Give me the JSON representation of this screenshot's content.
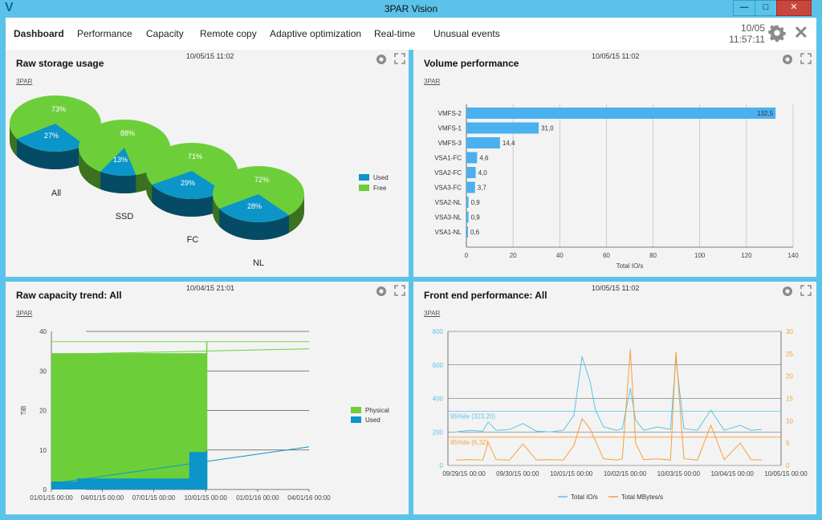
{
  "window": {
    "title": "3PAR Vision",
    "logo": "V",
    "minimize": "—",
    "maximize": "□",
    "close": "✕"
  },
  "menu": {
    "items": [
      "Dashboard",
      "Performance",
      "Capacity",
      "Remote copy",
      "Adaptive optimization",
      "Real-time",
      "Unusual events"
    ],
    "active": "Dashboard",
    "date": "10/05",
    "time": "11:57:11"
  },
  "panels": {
    "raw_storage": {
      "title": "Raw storage usage",
      "date": "10/05/15 11:02",
      "source": "3PAR"
    },
    "volume_perf": {
      "title": "Volume performance",
      "date": "10/05/15 11:02",
      "source": "3PAR"
    },
    "capacity_trend": {
      "title": "Raw capacity trend: All",
      "date": "10/04/15 21:01",
      "source": "3PAR"
    },
    "frontend_perf": {
      "title": "Front end performance: All",
      "date": "10/05/15 11:02",
      "source": "3PAR"
    }
  },
  "colors": {
    "used": "#0b95c9",
    "free": "#6ccf3a",
    "bar": "#4ab0ef",
    "iops": "#5bc3ea",
    "mbytes": "#f5a03c"
  },
  "chart_data": [
    {
      "type": "pie",
      "title": "Raw storage usage",
      "legend": [
        "Used",
        "Free"
      ],
      "legend_position": "right",
      "pies": [
        {
          "name": "All",
          "used": 27,
          "free": 73
        },
        {
          "name": "SSD",
          "used": 13,
          "free": 88
        },
        {
          "name": "FC",
          "used": 29,
          "free": 71
        },
        {
          "name": "NL",
          "used": 28,
          "free": 72
        }
      ]
    },
    {
      "type": "bar",
      "orientation": "horizontal",
      "title": "Volume performance",
      "xlabel": "Total IO/s",
      "xlim": [
        0,
        140
      ],
      "xticks": [
        0,
        20,
        40,
        60,
        80,
        100,
        120,
        140
      ],
      "categories": [
        "VMFS-2",
        "VMFS-1",
        "VMFS-3",
        "VSA1-FC",
        "VSA2-FC",
        "VSA3-FC",
        "VSA2-NL",
        "VSA3-NL",
        "VSA1-NL"
      ],
      "values": [
        132.5,
        31.0,
        14.4,
        4.6,
        4.0,
        3.7,
        0.9,
        0.9,
        0.6
      ],
      "labels": [
        "132,5",
        "31,0",
        "14,4",
        "4,6",
        "4,0",
        "3,7",
        "0,9",
        "0,9",
        "0,6"
      ],
      "grid": true
    },
    {
      "type": "area",
      "title": "Raw capacity trend: All",
      "ylabel": "TiB",
      "ylim": [
        0,
        40
      ],
      "yticks": [
        0,
        10,
        20,
        30,
        40
      ],
      "xticks": [
        "01/01/15 00:00",
        "04/01/15 00:00",
        "07/01/15 00:00",
        "10/01/15 00:00",
        "01/01/16 00:00",
        "04/01/16 00:00"
      ],
      "legend": [
        "Physical",
        "Used"
      ],
      "legend_position": "right",
      "series": [
        {
          "name": "Physical",
          "x": [
            "01/01/15",
            "10/01/15",
            "10/02/15",
            "10/04/15"
          ],
          "values": [
            34.5,
            34.5,
            37.4,
            37.4
          ]
        },
        {
          "name": "Used",
          "x": [
            "01/01/15",
            "02/01/15",
            "02/15/15",
            "09/01/15",
            "09/02/15",
            "10/01/15",
            "10/04/15"
          ],
          "values": [
            2.0,
            2.0,
            2.8,
            3.0,
            9.5,
            9.8,
            10.0
          ]
        }
      ],
      "trend_lines": [
        {
          "series": "Physical",
          "from": [
            "01/01/15",
            34.2
          ],
          "to": [
            "04/01/16",
            35.6
          ]
        },
        {
          "series": "Used",
          "from": [
            "01/01/15",
            1.5
          ],
          "to": [
            "04/01/16",
            10.8
          ]
        }
      ],
      "reference_line": {
        "series": "Physical",
        "value": 37.4
      }
    },
    {
      "type": "line",
      "title": "Front end performance: All",
      "xticks": [
        "09/29/15 00:00",
        "09/30/15 00:00",
        "10/01/15 00:00",
        "10/02/15 00:00",
        "10/03/15 00:00",
        "10/04/15 00:00",
        "10/05/15 00:00"
      ],
      "y_left": {
        "lim": [
          0,
          800
        ],
        "ticks": [
          0,
          200,
          400,
          600,
          800
        ]
      },
      "y_right": {
        "lim": [
          0,
          30
        ],
        "ticks": [
          0,
          5,
          10,
          15,
          20,
          25,
          30
        ]
      },
      "legend": [
        "Total IO/s",
        "Total MBytes/s"
      ],
      "legend_position": "bottom",
      "percentiles": [
        {
          "series": "Total IO/s",
          "label": "95%ile (323,20)",
          "value": 323.2
        },
        {
          "series": "Total MBytes/s",
          "label": "95%ile (6,32)",
          "value": 6.32
        }
      ],
      "series": [
        {
          "name": "Total IO/s",
          "axis": "left",
          "x_days": [
            0,
            0.25,
            0.5,
            0.6,
            0.75,
            1.0,
            1.25,
            1.5,
            1.75,
            2.0,
            2.2,
            2.35,
            2.5,
            2.6,
            2.75,
            3.0,
            3.1,
            3.25,
            3.35,
            3.5,
            3.75,
            4.0,
            4.1,
            4.25,
            4.5,
            4.75,
            5.0,
            5.3,
            5.5,
            5.7
          ],
          "values": [
            200,
            210,
            205,
            260,
            210,
            215,
            250,
            205,
            200,
            210,
            300,
            650,
            500,
            330,
            230,
            210,
            220,
            460,
            270,
            210,
            230,
            215,
            640,
            220,
            210,
            330,
            210,
            240,
            210,
            215
          ]
        },
        {
          "name": "Total MBytes/s",
          "axis": "right",
          "x_days": [
            0,
            0.25,
            0.5,
            0.6,
            0.75,
            1.0,
            1.25,
            1.5,
            1.75,
            2.0,
            2.2,
            2.35,
            2.5,
            2.6,
            2.75,
            3.0,
            3.1,
            3.25,
            3.35,
            3.5,
            3.75,
            4.0,
            4.1,
            4.25,
            4.5,
            4.75,
            5.0,
            5.3,
            5.5,
            5.7
          ],
          "values": [
            1.2,
            1.3,
            1.2,
            5.2,
            1.3,
            1.2,
            4.8,
            1.2,
            1.3,
            1.2,
            4.5,
            10.5,
            8.2,
            5.5,
            1.5,
            1.2,
            1.5,
            26.0,
            5.0,
            1.3,
            1.5,
            1.2,
            25.5,
            1.5,
            1.2,
            9.0,
            1.3,
            5.0,
            1.3,
            1.2
          ]
        }
      ]
    }
  ]
}
